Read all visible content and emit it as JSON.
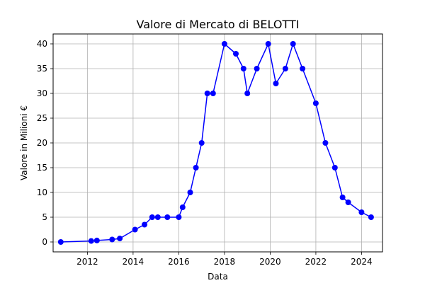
{
  "chart_data": {
    "type": "line",
    "title": "Valore di Mercato di BELOTTI",
    "xlabel": "Data",
    "ylabel": "Valore in Milioni €",
    "xlim": [
      "2010-07-01",
      "2024-12-01"
    ],
    "ylim": [
      -2,
      42
    ],
    "x_ticks": [
      2012,
      2014,
      2016,
      2018,
      2020,
      2022,
      2024
    ],
    "y_ticks": [
      0,
      5,
      10,
      15,
      20,
      25,
      30,
      35,
      40
    ],
    "grid": true,
    "line_color": "#0000ff",
    "x": [
      "2010-11-01",
      "2012-03-01",
      "2012-06-01",
      "2013-02-01",
      "2013-06-01",
      "2014-02-01",
      "2014-07-01",
      "2014-11-01",
      "2015-02-01",
      "2015-07-01",
      "2016-01-01",
      "2016-03-01",
      "2016-07-01",
      "2016-10-01",
      "2017-01-01",
      "2017-04-01",
      "2017-07-01",
      "2018-01-01",
      "2018-07-01",
      "2018-11-01",
      "2019-01-01",
      "2019-06-01",
      "2019-12-01",
      "2020-04-01",
      "2020-09-01",
      "2021-01-01",
      "2021-06-01",
      "2022-01-01",
      "2022-06-01",
      "2022-11-01",
      "2023-03-01",
      "2023-06-01",
      "2024-01-01",
      "2024-06-01"
    ],
    "y": [
      0,
      0.2,
      0.3,
      0.5,
      0.7,
      2.5,
      3.5,
      5,
      5,
      5,
      5,
      7,
      10,
      15,
      20,
      30,
      30,
      40,
      38,
      35,
      30,
      35,
      40,
      32,
      35,
      40,
      35,
      28,
      20,
      15,
      9,
      8,
      6,
      5
    ]
  }
}
